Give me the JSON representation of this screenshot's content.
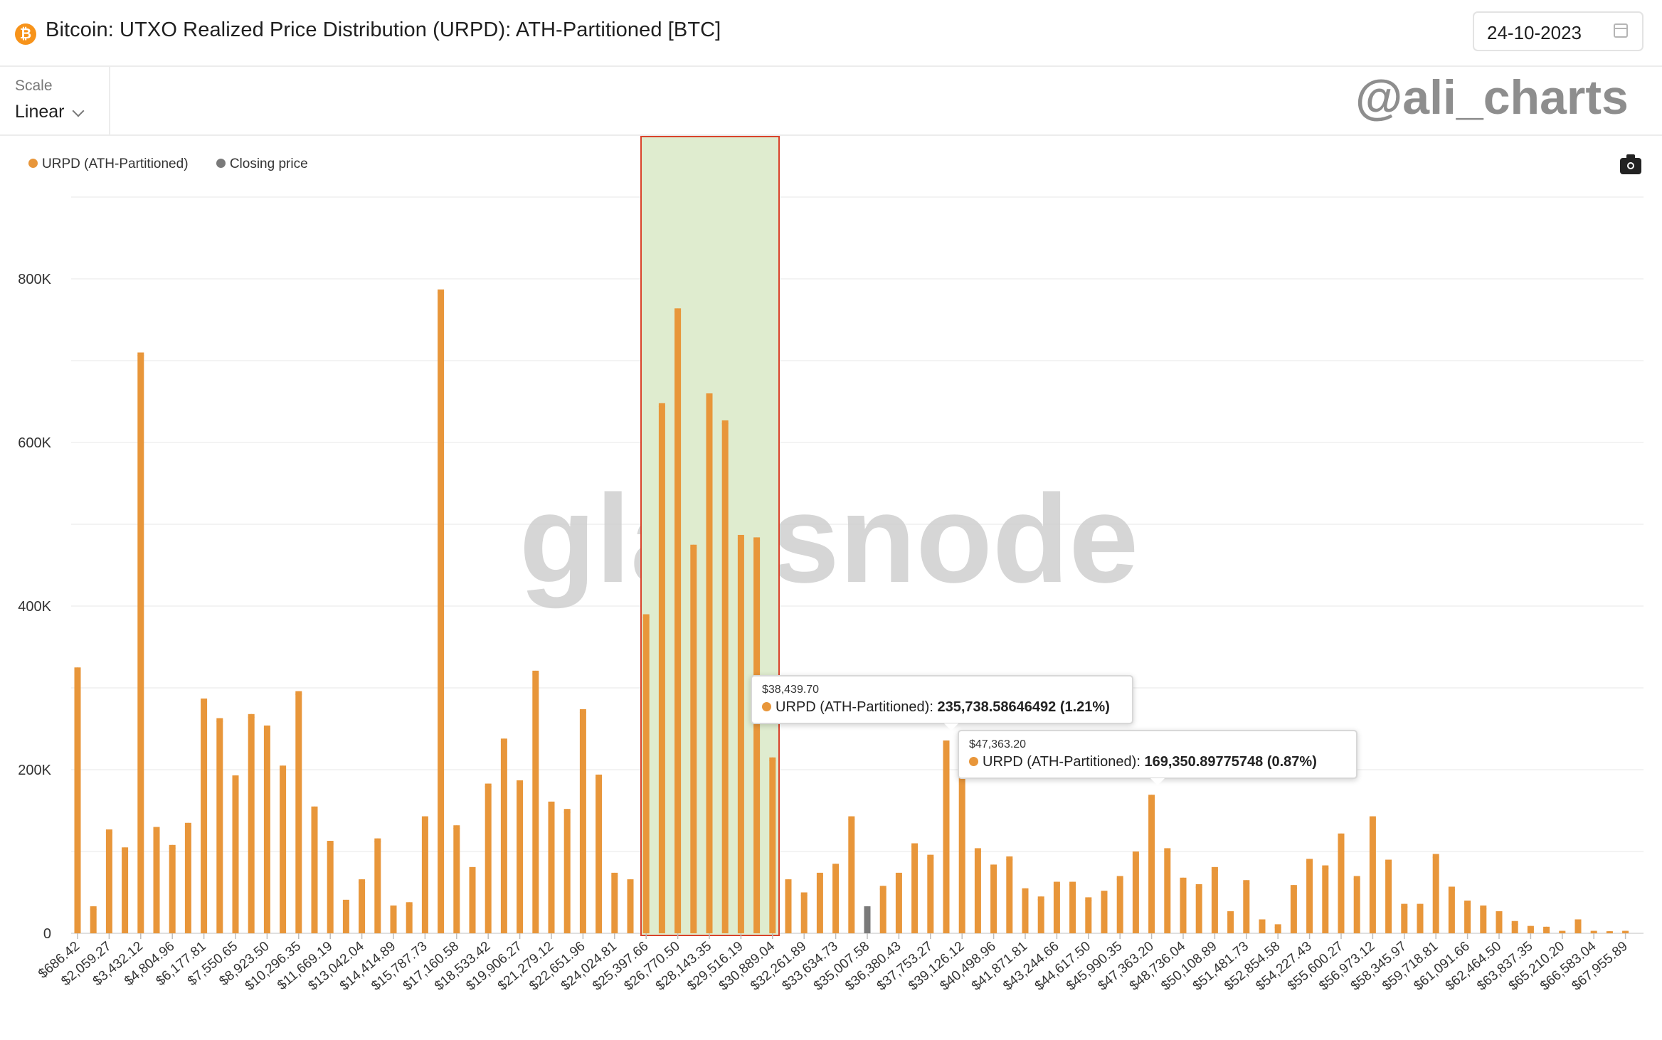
{
  "header": {
    "title": "Bitcoin: UTXO Realized Price Distribution (URPD): ATH-Partitioned [BTC]",
    "icon": "bitcoin-icon",
    "date": "24-10-2023"
  },
  "scale": {
    "label": "Scale",
    "value": "Linear"
  },
  "watermark": {
    "handle": "@ali_charts",
    "brand": "glassnode"
  },
  "legend": [
    {
      "label": "URPD (ATH-Partitioned)",
      "color": "#e8963a"
    },
    {
      "label": "Closing price",
      "color": "#7a7a7a"
    }
  ],
  "tooltips": [
    {
      "date": "$38,439.70",
      "series": "URPD (ATH-Partitioned): ",
      "value": "235,738.58646492 (1.21%)"
    },
    {
      "date": "$47,363.20",
      "series": "URPD (ATH-Partitioned): ",
      "value": "169,350.89775748 (0.87%)"
    }
  ],
  "chart_data": {
    "type": "bar",
    "title": "Bitcoin: UTXO Realized Price Distribution (URPD): ATH-Partitioned [BTC]",
    "xlabel": "",
    "ylabel": "",
    "ylim": [
      0,
      900000
    ],
    "y_ticks": [
      "0",
      "200K",
      "400K",
      "600K",
      "800K"
    ],
    "y_tick_values": [
      0,
      200000,
      400000,
      600000,
      800000
    ],
    "grid": true,
    "legend_position": "top-left",
    "x_tick_labels": [
      "$686.42",
      "$2,059.27",
      "$3,432.12",
      "$4,804.96",
      "$6,177.81",
      "$7,550.65",
      "$8,923.50",
      "$10,296.35",
      "$11,669.19",
      "$13,042.04",
      "$14,414.89",
      "$15,787.73",
      "$17,160.58",
      "$18,533.42",
      "$19,906.27",
      "$21,279.12",
      "$22,651.96",
      "$24,024.81",
      "$25,397.66",
      "$26,770.50",
      "$28,143.35",
      "$29,516.19",
      "$30,889.04",
      "$32,261.89",
      "$33,634.73",
      "$35,007.58",
      "$36,380.43",
      "$37,753.27",
      "$39,126.12",
      "$40,498.96",
      "$41,871.81",
      "$43,244.66",
      "$44,617.50",
      "$45,990.35",
      "$47,363.20",
      "$48,736.04",
      "$50,108.89",
      "$51,481.73",
      "$52,854.58",
      "$54,227.43",
      "$55,600.27",
      "$56,973.12",
      "$58,345.97",
      "$59,718.81",
      "$61,091.66",
      "$62,464.50",
      "$63,837.35",
      "$65,210.20",
      "$66,583.04",
      "$67,955.89"
    ],
    "highlight_range": [
      "$25,397.66",
      "$30,889.04"
    ],
    "closing_price_bar_index": 50,
    "series": [
      {
        "name": "URPD (ATH-Partitioned)",
        "color": "#e8963a",
        "values": [
          325000,
          33000,
          127000,
          105000,
          710000,
          130000,
          108000,
          135000,
          287000,
          263000,
          193000,
          268000,
          254000,
          205000,
          296000,
          155000,
          113000,
          41000,
          66000,
          116000,
          34000,
          38000,
          143000,
          787000,
          132000,
          81000,
          183000,
          238000,
          187000,
          321000,
          161000,
          152000,
          274000,
          194000,
          74000,
          66000,
          390000,
          648000,
          764000,
          475000,
          660000,
          627000,
          487000,
          484000,
          215000,
          66000,
          50000,
          74000,
          85000,
          143000,
          33000,
          58000,
          74000,
          110000,
          96000,
          235739,
          195000,
          104000,
          84000,
          94000,
          55000,
          45000,
          63000,
          63000,
          44000,
          52000,
          70000,
          100000,
          169351,
          104000,
          68000,
          60000,
          81000,
          27000,
          65000,
          17000,
          11000,
          59000,
          91000,
          83000,
          122000,
          70000,
          143000,
          90000,
          36000,
          36000,
          97000,
          57000,
          40000,
          34000,
          27000,
          15000,
          9000,
          8000,
          3000,
          17000,
          3000,
          2500,
          3000
        ]
      }
    ]
  }
}
